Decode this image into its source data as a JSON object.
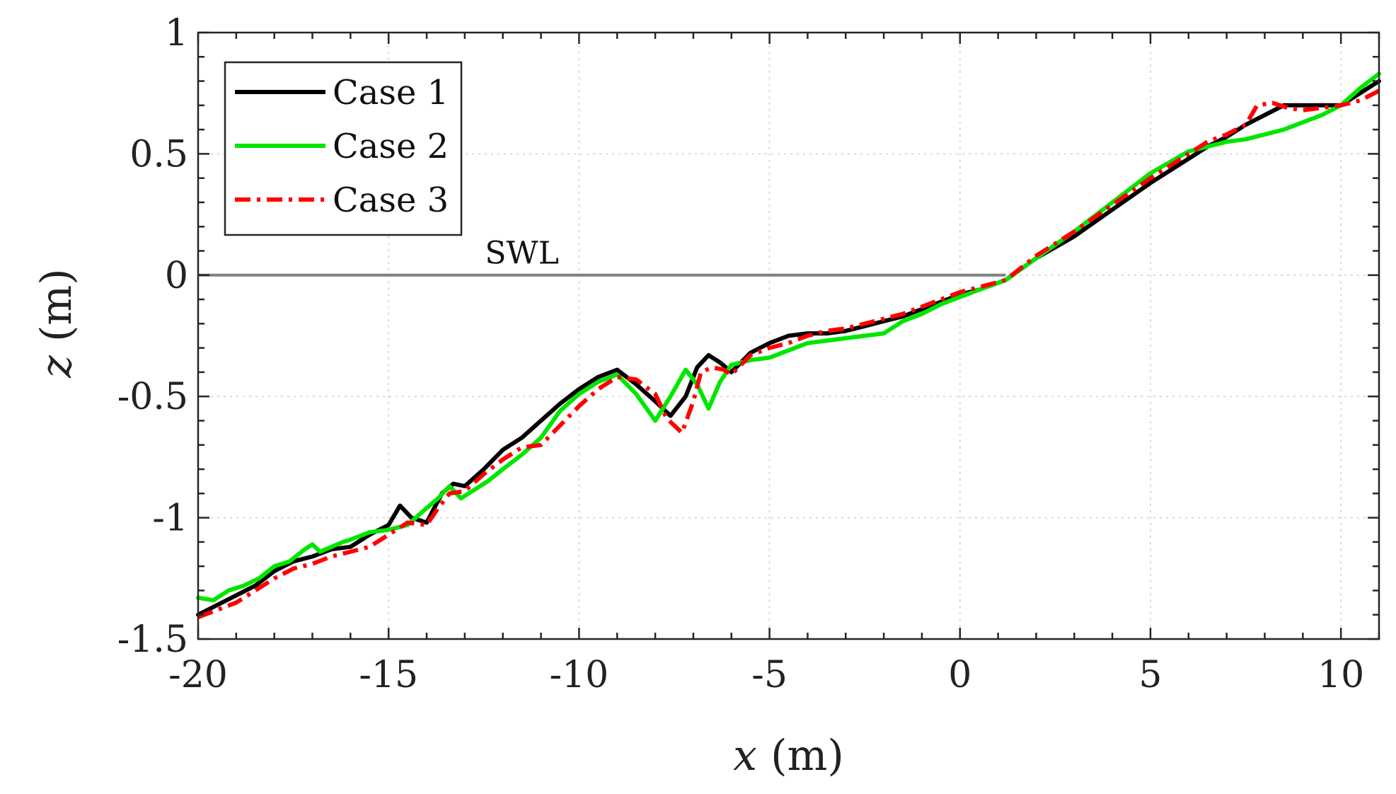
{
  "chart_data": {
    "type": "line",
    "title": "",
    "xlabel": {
      "var": "x",
      "unit": " (m)"
    },
    "ylabel": {
      "var": "z",
      "unit": " (m)"
    },
    "xlim": [
      -20,
      11
    ],
    "ylim": [
      -1.5,
      1
    ],
    "xticks": [
      -20,
      -15,
      -10,
      -5,
      0,
      5,
      10
    ],
    "xtick_labels": [
      "-20",
      "-15",
      "-10",
      "-5",
      "0",
      "5",
      "10"
    ],
    "yticks": [
      -1.5,
      -1,
      -0.5,
      0,
      0.5,
      1
    ],
    "ytick_labels": [
      "-1.5",
      "-1",
      "-0.5",
      "0",
      "0.5",
      "1"
    ],
    "grid": true,
    "legend_position": "top-left",
    "annotations": [
      {
        "text": "SWL",
        "x": -11.5,
        "y": 0.03
      }
    ],
    "reference_line": {
      "label": "SWL",
      "y": 0,
      "x_start": -20,
      "x_end": 1.2,
      "color": "#808080"
    },
    "series": [
      {
        "name": "Case 1",
        "color": "#000000",
        "dash": "solid",
        "x": [
          -20,
          -19.5,
          -19,
          -18.5,
          -18,
          -17.5,
          -17,
          -16.5,
          -16,
          -15.5,
          -15,
          -14.7,
          -14.4,
          -14,
          -13.6,
          -13.3,
          -13,
          -12.5,
          -12,
          -11.5,
          -11,
          -10.5,
          -10,
          -9.5,
          -9,
          -8.5,
          -8,
          -7.6,
          -7.2,
          -6.9,
          -6.6,
          -6.3,
          -6,
          -5.5,
          -5,
          -4.5,
          -4,
          -3.5,
          -3,
          -2.5,
          -2,
          -1.5,
          -1,
          -0.5,
          0,
          0.5,
          1.2,
          2,
          3,
          4,
          5,
          6,
          6.5,
          7,
          7.5,
          8,
          8.5,
          9,
          9.5,
          10,
          10.5,
          11
        ],
        "values": [
          -1.4,
          -1.36,
          -1.32,
          -1.28,
          -1.22,
          -1.18,
          -1.16,
          -1.13,
          -1.12,
          -1.07,
          -1.03,
          -0.95,
          -1.0,
          -1.02,
          -0.9,
          -0.86,
          -0.87,
          -0.8,
          -0.72,
          -0.67,
          -0.6,
          -0.53,
          -0.47,
          -0.42,
          -0.39,
          -0.45,
          -0.52,
          -0.58,
          -0.5,
          -0.38,
          -0.33,
          -0.36,
          -0.4,
          -0.32,
          -0.28,
          -0.25,
          -0.24,
          -0.24,
          -0.23,
          -0.21,
          -0.19,
          -0.17,
          -0.14,
          -0.11,
          -0.08,
          -0.06,
          -0.02,
          0.07,
          0.16,
          0.27,
          0.38,
          0.48,
          0.53,
          0.57,
          0.62,
          0.66,
          0.7,
          0.7,
          0.7,
          0.7,
          0.75,
          0.8
        ]
      },
      {
        "name": "Case 2",
        "color": "#00e600",
        "dash": "solid",
        "x": [
          -20,
          -19.6,
          -19.2,
          -18.8,
          -18.4,
          -18,
          -17.6,
          -17.2,
          -17,
          -16.8,
          -16.5,
          -16.2,
          -16,
          -15.5,
          -15,
          -14.5,
          -14,
          -13.7,
          -13.4,
          -13.1,
          -12.8,
          -12.4,
          -12,
          -11.5,
          -11,
          -10.5,
          -10,
          -9.5,
          -9,
          -8.5,
          -8,
          -7.6,
          -7.2,
          -6.9,
          -6.6,
          -6.3,
          -6,
          -5.5,
          -5,
          -4.5,
          -4,
          -3.5,
          -3,
          -2.5,
          -2,
          -1.5,
          -1,
          -0.5,
          0,
          0.5,
          1.2,
          2,
          3,
          4,
          5,
          6,
          7,
          7.5,
          8,
          8.5,
          9,
          9.5,
          10,
          10.5,
          11
        ],
        "values": [
          -1.33,
          -1.34,
          -1.3,
          -1.28,
          -1.25,
          -1.2,
          -1.18,
          -1.13,
          -1.11,
          -1.14,
          -1.12,
          -1.1,
          -1.09,
          -1.06,
          -1.05,
          -1.03,
          -0.96,
          -0.92,
          -0.87,
          -0.92,
          -0.89,
          -0.85,
          -0.8,
          -0.74,
          -0.67,
          -0.56,
          -0.49,
          -0.44,
          -0.41,
          -0.49,
          -0.6,
          -0.5,
          -0.39,
          -0.45,
          -0.55,
          -0.44,
          -0.37,
          -0.35,
          -0.34,
          -0.31,
          -0.28,
          -0.27,
          -0.26,
          -0.25,
          -0.24,
          -0.19,
          -0.16,
          -0.12,
          -0.09,
          -0.06,
          -0.02,
          0.07,
          0.18,
          0.3,
          0.42,
          0.51,
          0.55,
          0.56,
          0.58,
          0.6,
          0.63,
          0.66,
          0.7,
          0.77,
          0.83
        ]
      },
      {
        "name": "Case 3",
        "color": "#ff0000",
        "dash": "dashdot",
        "x": [
          -20,
          -19.5,
          -19,
          -18.5,
          -18,
          -17.5,
          -17,
          -16.5,
          -16,
          -15.5,
          -15,
          -14.5,
          -14,
          -13.7,
          -13.4,
          -13,
          -12.5,
          -12,
          -11.5,
          -11,
          -10.5,
          -10,
          -9.5,
          -9,
          -8.5,
          -8,
          -7.7,
          -7.3,
          -7,
          -6.8,
          -6.5,
          -6.2,
          -6,
          -5.5,
          -5,
          -4.5,
          -4,
          -3.5,
          -3,
          -2.5,
          -2,
          -1.5,
          -1,
          -0.5,
          0,
          0.5,
          1.2,
          2,
          3,
          4,
          5,
          6,
          6.5,
          7,
          7.5,
          7.8,
          8.2,
          8.6,
          9,
          9.5,
          10,
          10.5,
          11
        ],
        "values": [
          -1.41,
          -1.38,
          -1.35,
          -1.3,
          -1.25,
          -1.21,
          -1.19,
          -1.16,
          -1.14,
          -1.12,
          -1.07,
          -1.02,
          -1.03,
          -0.96,
          -0.9,
          -0.89,
          -0.82,
          -0.76,
          -0.71,
          -0.7,
          -0.62,
          -0.54,
          -0.47,
          -0.42,
          -0.43,
          -0.49,
          -0.59,
          -0.65,
          -0.52,
          -0.4,
          -0.38,
          -0.39,
          -0.41,
          -0.33,
          -0.3,
          -0.28,
          -0.25,
          -0.23,
          -0.22,
          -0.2,
          -0.18,
          -0.16,
          -0.13,
          -0.1,
          -0.07,
          -0.05,
          -0.02,
          0.08,
          0.18,
          0.29,
          0.4,
          0.5,
          0.55,
          0.58,
          0.62,
          0.7,
          0.71,
          0.69,
          0.68,
          0.69,
          0.7,
          0.72,
          0.76
        ]
      }
    ]
  }
}
